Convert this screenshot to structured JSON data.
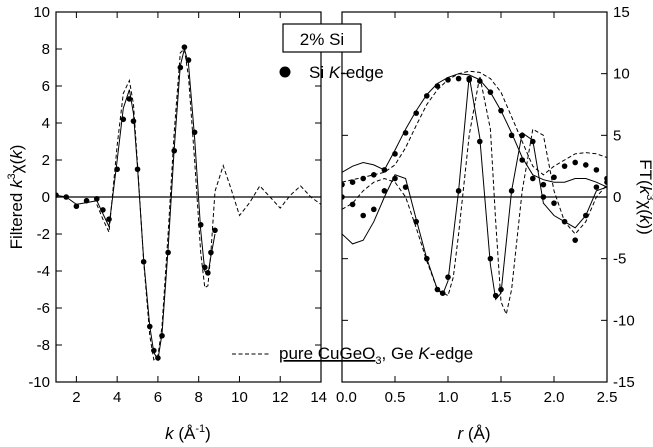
{
  "chart_data": [
    {
      "type": "line",
      "panel": "left",
      "xlabel": "k (Å⁻¹)",
      "ylabel": "Filtered k³χ(k)",
      "xlim": [
        1,
        14
      ],
      "ylim": [
        -10,
        10
      ],
      "xticks": [
        2,
        4,
        6,
        8,
        10,
        12,
        14
      ],
      "xtick_labels": [
        "2",
        "4",
        "6",
        "8",
        "10",
        "12",
        "14"
      ],
      "yticks": [
        -10,
        -8,
        -6,
        -4,
        -2,
        0,
        2,
        4,
        6,
        8,
        10
      ],
      "ytick_labels": [
        "-10",
        "-8",
        "-6",
        "-4",
        "-2",
        "0",
        "2",
        "4",
        "6",
        "8",
        "10"
      ],
      "zero_line": true,
      "series": [
        {
          "style": "dots",
          "x": [
            1.0,
            1.5,
            2.0,
            2.5,
            3.0,
            3.3,
            3.6,
            4.0,
            4.3,
            4.6,
            4.8,
            5.0,
            5.3,
            5.6,
            5.8,
            6.0,
            6.2,
            6.5,
            6.8,
            7.1,
            7.3,
            7.5,
            7.8,
            8.1,
            8.3,
            8.45,
            8.6,
            8.8
          ],
          "y": [
            0.1,
            0.0,
            -0.5,
            -0.2,
            -0.1,
            -0.7,
            -1.2,
            1.5,
            4.2,
            5.3,
            4.1,
            1.5,
            -3.5,
            -7.0,
            -8.3,
            -8.7,
            -7.5,
            -3.0,
            2.5,
            7.0,
            8.1,
            7.4,
            3.5,
            -1.5,
            -3.8,
            -4.1,
            -3.0,
            -1.8
          ]
        },
        {
          "style": "solid",
          "x": [
            1.0,
            1.5,
            2.0,
            2.5,
            3.0,
            3.3,
            3.6,
            4.0,
            4.3,
            4.6,
            4.8,
            5.0,
            5.3,
            5.6,
            5.8,
            6.0,
            6.2,
            6.5,
            6.8,
            7.1,
            7.3,
            7.5,
            7.8,
            8.1,
            8.3,
            8.45,
            8.6,
            8.8
          ],
          "y": [
            0.1,
            0.0,
            -0.4,
            -0.3,
            -0.2,
            -0.9,
            -1.6,
            2.0,
            4.8,
            5.8,
            4.5,
            1.6,
            -3.4,
            -7.0,
            -8.4,
            -8.8,
            -7.4,
            -2.8,
            2.6,
            7.1,
            8.0,
            7.2,
            3.2,
            -1.8,
            -4.0,
            -4.2,
            -3.2,
            -2.0
          ]
        },
        {
          "style": "dashed",
          "x": [
            3.0,
            3.3,
            3.6,
            4.0,
            4.3,
            4.6,
            4.8,
            5.0,
            5.3,
            5.6,
            5.8,
            6.0,
            6.2,
            6.5,
            6.8,
            7.1,
            7.3,
            7.5,
            7.8,
            8.1,
            8.3,
            8.45,
            8.6,
            8.8,
            9.2,
            9.6,
            10.0,
            10.5,
            11.0,
            11.5,
            12.0,
            12.5,
            13.0,
            13.5,
            14.0
          ],
          "y": [
            -0.4,
            -1.2,
            -1.9,
            2.8,
            5.6,
            6.3,
            5.0,
            1.8,
            -3.5,
            -7.5,
            -8.8,
            -8.6,
            -7.0,
            -2.0,
            3.5,
            7.8,
            8.0,
            6.5,
            2.0,
            -3.0,
            -4.9,
            -4.8,
            -3.0,
            0.3,
            1.7,
            0.4,
            -1.0,
            -0.3,
            0.6,
            0.0,
            -0.6,
            0.1,
            0.6,
            0.0,
            -0.4
          ]
        }
      ]
    },
    {
      "type": "line",
      "panel": "right",
      "xlabel": "r (Å)",
      "ylabel": "FT(k³χ(k))",
      "xlim": [
        0.0,
        2.5
      ],
      "ylim": [
        -15,
        15
      ],
      "xticks": [
        0.0,
        0.5,
        1.0,
        1.5,
        2.0,
        2.5
      ],
      "xtick_labels": [
        "0.0",
        "0.5",
        "1.0",
        "1.5",
        "2.0",
        "2.5"
      ],
      "yticks": [
        -15,
        -10,
        -5,
        0,
        5,
        10,
        15
      ],
      "ytick_labels": [
        "-15",
        "-10",
        "-5",
        "0",
        "5",
        "10",
        "15"
      ],
      "zero_line": true,
      "series": [
        {
          "style": "dots",
          "x": [
            0.0,
            0.1,
            0.2,
            0.3,
            0.4,
            0.5,
            0.6,
            0.7,
            0.8,
            0.9,
            1.0,
            1.1,
            1.2,
            1.3,
            1.4,
            1.5,
            1.6,
            1.7,
            1.8,
            1.9,
            2.0,
            2.1,
            2.2,
            2.3,
            2.4,
            2.5
          ],
          "y": [
            1.0,
            1.2,
            1.5,
            1.8,
            2.2,
            3.5,
            5.2,
            6.8,
            8.2,
            9.0,
            9.5,
            9.6,
            9.6,
            9.4,
            8.5,
            7.0,
            5.0,
            3.0,
            1.5,
            1.0,
            1.6,
            2.5,
            2.8,
            2.6,
            2.2,
            1.5
          ]
        },
        {
          "style": "dots",
          "x": [
            0.0,
            0.1,
            0.2,
            0.3,
            0.4,
            0.5,
            0.6,
            0.7,
            0.8,
            0.9,
            0.95,
            1.0,
            1.1,
            1.2,
            1.3,
            1.4,
            1.45,
            1.5,
            1.6,
            1.7,
            1.8,
            1.9,
            2.0,
            2.1,
            2.2,
            2.3,
            2.4,
            2.5
          ],
          "y": [
            0.0,
            -0.6,
            -1.5,
            -1.0,
            0.5,
            1.5,
            0.8,
            -2.0,
            -5.0,
            -7.5,
            -7.8,
            -6.5,
            0.5,
            9.5,
            4.5,
            -5.0,
            -8.0,
            -7.5,
            0.5,
            5.0,
            4.5,
            0.0,
            -0.5,
            -2.0,
            -3.5,
            -1.5,
            0.8,
            1.2
          ]
        },
        {
          "style": "solid",
          "x": [
            0.0,
            0.1,
            0.2,
            0.3,
            0.4,
            0.5,
            0.6,
            0.7,
            0.8,
            0.9,
            1.0,
            1.1,
            1.2,
            1.3,
            1.4,
            1.5,
            1.6,
            1.7,
            1.8,
            1.9,
            2.0,
            2.1,
            2.2,
            2.3,
            2.4,
            2.5
          ],
          "y": [
            2.0,
            2.5,
            2.8,
            2.6,
            2.2,
            3.8,
            5.5,
            7.0,
            8.3,
            9.2,
            9.7,
            10.0,
            9.9,
            9.5,
            8.5,
            7.0,
            5.2,
            3.2,
            1.8,
            1.4,
            1.2,
            1.2,
            1.5,
            1.5,
            1.2,
            0.8
          ]
        },
        {
          "style": "solid",
          "x": [
            0.0,
            0.1,
            0.2,
            0.3,
            0.4,
            0.5,
            0.6,
            0.7,
            0.8,
            0.9,
            0.95,
            1.0,
            1.1,
            1.2,
            1.3,
            1.4,
            1.45,
            1.5,
            1.6,
            1.7,
            1.8,
            1.9,
            2.0,
            2.1,
            2.2,
            2.3,
            2.4,
            2.5
          ],
          "y": [
            -3.0,
            -3.8,
            -3.5,
            -2.0,
            0.0,
            1.8,
            1.5,
            -1.8,
            -5.0,
            -7.5,
            -7.9,
            -6.8,
            0.5,
            9.8,
            4.8,
            -5.5,
            -8.3,
            -7.8,
            0.5,
            5.2,
            4.6,
            -0.5,
            -1.5,
            -2.0,
            -2.5,
            -1.5,
            0.5,
            0.8
          ]
        },
        {
          "style": "dashed",
          "x": [
            0.0,
            0.1,
            0.2,
            0.3,
            0.4,
            0.5,
            0.6,
            0.7,
            0.8,
            0.9,
            1.0,
            1.1,
            1.2,
            1.3,
            1.4,
            1.5,
            1.6,
            1.7,
            1.8,
            1.9,
            2.0,
            2.1,
            2.2,
            2.3,
            2.4,
            2.5
          ],
          "y": [
            1.2,
            1.4,
            1.6,
            1.8,
            2.0,
            2.6,
            4.0,
            5.8,
            7.5,
            8.7,
            9.5,
            10.0,
            10.2,
            10.1,
            9.6,
            8.5,
            6.5,
            4.5,
            2.5,
            1.8,
            2.5,
            3.0,
            3.5,
            3.6,
            3.5,
            3.2
          ]
        },
        {
          "style": "dashed",
          "x": [
            0.0,
            0.1,
            0.2,
            0.3,
            0.4,
            0.5,
            0.6,
            0.7,
            0.8,
            0.9,
            1.0,
            1.05,
            1.1,
            1.2,
            1.3,
            1.4,
            1.45,
            1.5,
            1.55,
            1.6,
            1.7,
            1.8,
            1.9,
            2.0,
            2.1,
            2.2,
            2.3,
            2.4,
            2.5
          ],
          "y": [
            -1.0,
            -0.5,
            0.5,
            1.2,
            1.5,
            1.2,
            0.0,
            -2.5,
            -5.2,
            -7.5,
            -8.0,
            -6.5,
            -3.0,
            5.0,
            9.8,
            5.5,
            -2.0,
            -8.5,
            -9.5,
            -7.5,
            0.5,
            5.5,
            5.0,
            0.5,
            -2.0,
            -3.0,
            -2.0,
            0.0,
            1.0
          ]
        }
      ]
    }
  ],
  "labels": {
    "sample_box": "2% Si",
    "legend_dot_prefix": "Si ",
    "legend_dot_italic": "K",
    "legend_dot_suffix": "-edge",
    "legend_dash_underlined": "pure CuGeO",
    "legend_dash_sub": "3",
    "legend_dash_middle": ", Ge ",
    "legend_dash_italic": "K",
    "legend_dash_suffix": "-edge",
    "left_ylabel_main": "Filtered ",
    "left_ylabel_k": "k",
    "left_ylabel_sup": "3",
    "left_ylabel_chi": "χ(",
    "left_ylabel_k2": "k",
    "left_ylabel_close": ")",
    "left_xlabel_k": "k",
    "left_xlabel_rest": " (Å",
    "left_xlabel_sup": "-1",
    "left_xlabel_close": ")",
    "right_xlabel_r": "r",
    "right_xlabel_rest": " (Å)",
    "right_ylabel_pre": "FT(",
    "right_ylabel_k": "k",
    "right_ylabel_sup": "3",
    "right_ylabel_chi": "χ(",
    "right_ylabel_k2": "k",
    "right_ylabel_close": "))"
  }
}
